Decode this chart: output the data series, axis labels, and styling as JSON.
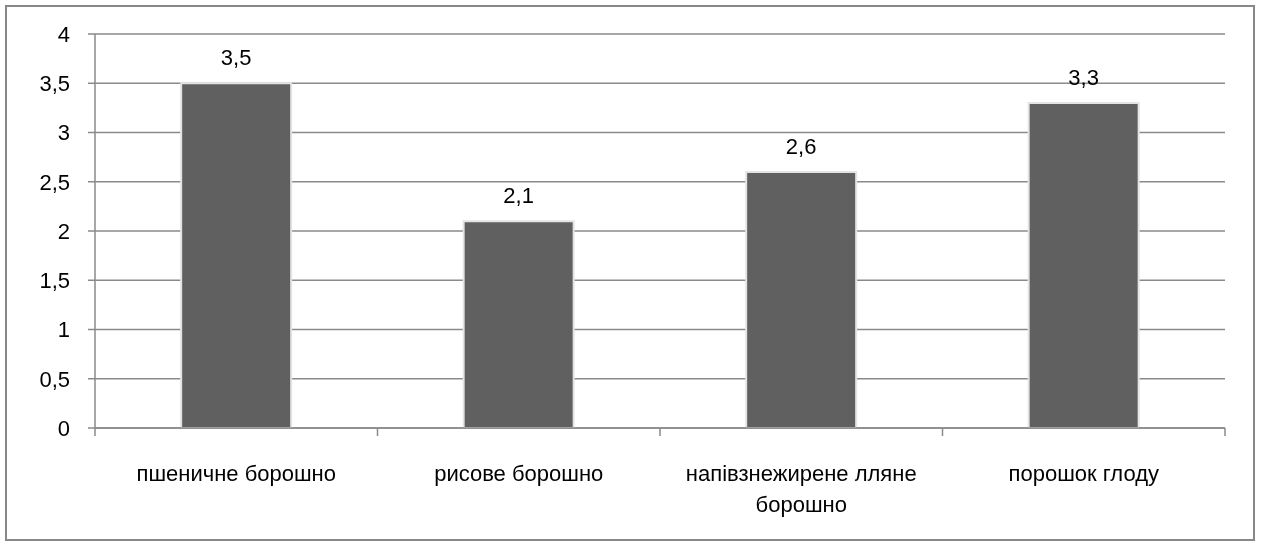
{
  "chart_data": {
    "type": "bar",
    "categories": [
      "пшеничне борошно",
      "рисове борошно",
      "напівзнежирене лляне борошно",
      "порошок глоду"
    ],
    "values": [
      3.5,
      2.1,
      2.6,
      3.3
    ],
    "color": "#606060",
    "value_labels": [
      "3,5",
      "2,1",
      "2,6",
      "3,3"
    ],
    "ylim": [
      0,
      4
    ],
    "yticks": [
      0,
      {
        "value": 0.5,
        "label": "0,5"
      },
      1,
      {
        "value": 1.5,
        "label": "1,5"
      },
      2,
      {
        "value": 2.5,
        "label": "2,5"
      },
      3,
      {
        "value": 3.5,
        "label": "3,5"
      },
      4
    ],
    "grid": "y"
  }
}
